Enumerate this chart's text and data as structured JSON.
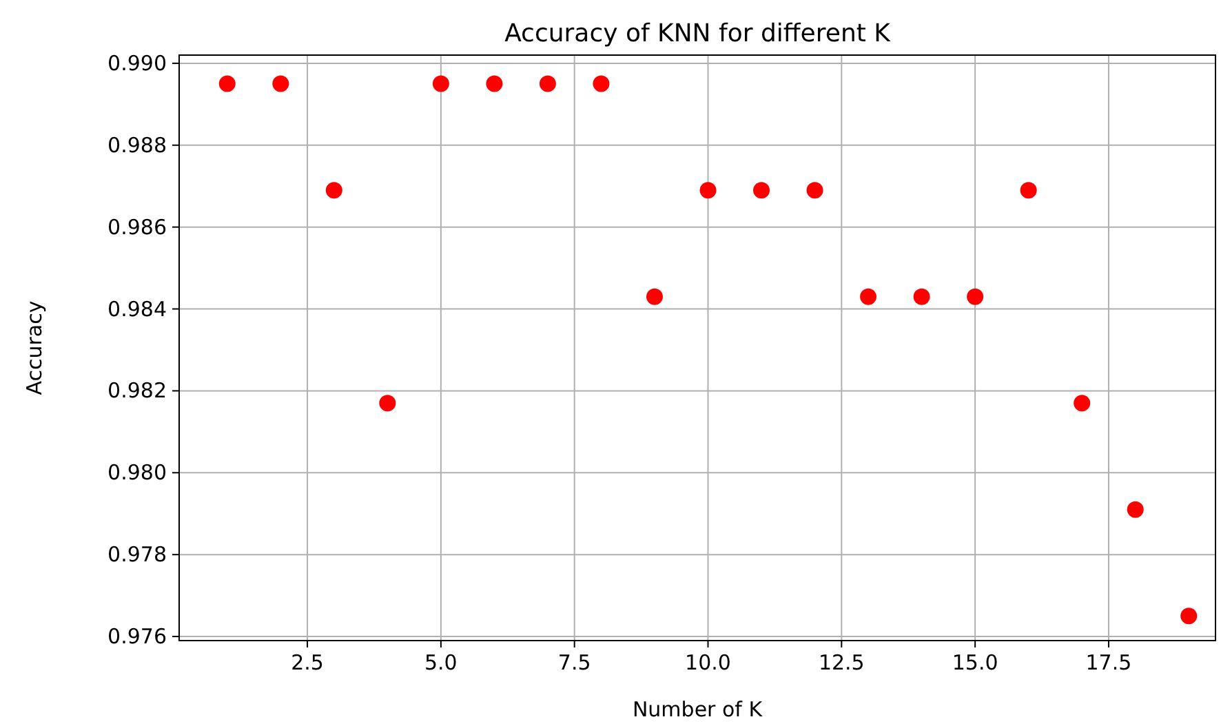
{
  "chart_data": {
    "type": "scatter",
    "title": "Accuracy of KNN for different K",
    "xlabel": "Number of K",
    "ylabel": "Accuracy",
    "x": [
      1,
      2,
      3,
      4,
      5,
      6,
      7,
      8,
      9,
      10,
      11,
      12,
      13,
      14,
      15,
      16,
      17,
      18,
      19
    ],
    "series": [
      {
        "color": "#ff0000",
        "values": [
          0.9895,
          0.9895,
          0.9869,
          0.9817,
          0.9895,
          0.9895,
          0.9895,
          0.9895,
          0.9843,
          0.9869,
          0.9869,
          0.9869,
          0.9843,
          0.9843,
          0.9843,
          0.9869,
          0.9817,
          0.9791,
          0.9765
        ]
      }
    ],
    "xlim": [
      0.1,
      19.5
    ],
    "ylim": [
      0.9759,
      0.9902
    ],
    "xticks": [
      {
        "value": 2.5,
        "label": "2.5"
      },
      {
        "value": 5,
        "label": "5.0"
      },
      {
        "value": 7.5,
        "label": "7.5"
      },
      {
        "value": 10,
        "label": "10.0"
      },
      {
        "value": 12.5,
        "label": "12.5"
      },
      {
        "value": 15,
        "label": "15.0"
      },
      {
        "value": 17.5,
        "label": "17.5"
      }
    ],
    "yticks": [
      {
        "value": 0.976,
        "label": "0.976"
      },
      {
        "value": 0.978,
        "label": "0.978"
      },
      {
        "value": 0.98,
        "label": "0.980"
      },
      {
        "value": 0.982,
        "label": "0.982"
      },
      {
        "value": 0.984,
        "label": "0.984"
      },
      {
        "value": 0.986,
        "label": "0.986"
      },
      {
        "value": 0.988,
        "label": "0.988"
      },
      {
        "value": 0.99,
        "label": "0.990"
      }
    ],
    "grid": true,
    "marker": "circle"
  }
}
